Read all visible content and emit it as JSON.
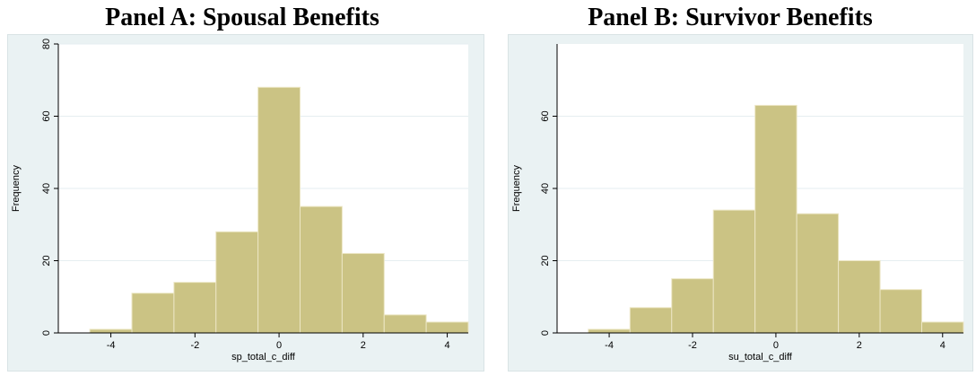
{
  "chart_data": [
    {
      "type": "bar",
      "title": "Panel A: Spousal Benefits",
      "xlabel": "sp_total_c_diff",
      "ylabel": "Frequency",
      "bin_edges": [
        -4.5,
        -3.5,
        -2.5,
        -1.5,
        -0.5,
        0.5,
        1.5,
        2.5,
        3.5,
        4.5
      ],
      "values": [
        1,
        11,
        14,
        28,
        68,
        35,
        22,
        5,
        3
      ],
      "xlim": [
        -5.25,
        4.5
      ],
      "ylim": [
        0,
        80
      ],
      "xticks": [
        -4,
        -2,
        0,
        2,
        4
      ],
      "xtick_labels": [
        "-4",
        "-2",
        "0",
        "2",
        "4"
      ],
      "yticks": [
        0,
        20,
        40,
        60,
        80
      ],
      "ytick_labels": [
        "0",
        "20",
        "40",
        "60",
        "80"
      ],
      "bar_color": "#cbc384",
      "plot_background": "#ffffff",
      "outer_background": "#eaf2f3",
      "grid": true
    },
    {
      "type": "bar",
      "title": "Panel B: Survivor Benefits",
      "xlabel": "su_total_c_diff",
      "ylabel": "Frequency",
      "bin_edges": [
        -4.5,
        -3.5,
        -2.5,
        -1.5,
        -0.5,
        0.5,
        1.5,
        2.5,
        3.5,
        4.5
      ],
      "values": [
        1,
        7,
        15,
        34,
        63,
        33,
        20,
        12,
        3
      ],
      "xlim": [
        -5.25,
        4.5
      ],
      "ylim": [
        0,
        80
      ],
      "xticks": [
        -4,
        -2,
        0,
        2,
        4
      ],
      "xtick_labels": [
        "-4",
        "-2",
        "0",
        "2",
        "4"
      ],
      "yticks": [
        0,
        20,
        40,
        60
      ],
      "ytick_labels": [
        "0",
        "20",
        "40",
        "60"
      ],
      "bar_color": "#cbc384",
      "plot_background": "#ffffff",
      "outer_background": "#eaf2f3",
      "grid": true
    }
  ]
}
